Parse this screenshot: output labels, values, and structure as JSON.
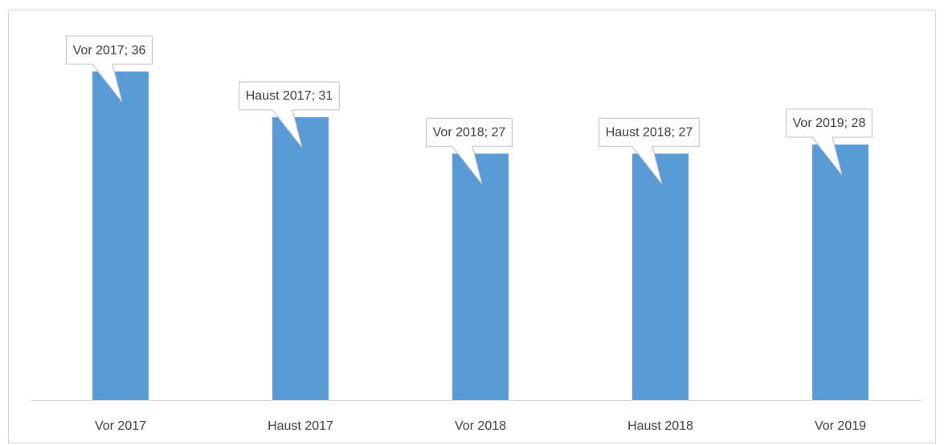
{
  "chart_data": {
    "type": "bar",
    "categories": [
      "Vor 2017",
      "Haust 2017",
      "Vor 2018",
      "Haust 2018",
      "Vor 2019"
    ],
    "values": [
      36,
      31,
      27,
      27,
      28
    ],
    "value_labels": [
      "Vor 2017; 36",
      "Haust 2017; 31",
      "Vor 2018; 27",
      "Haust 2018; 27",
      "Vor 2019; 28"
    ],
    "color": "#5b9bd5",
    "ylim": [
      0,
      40
    ]
  }
}
